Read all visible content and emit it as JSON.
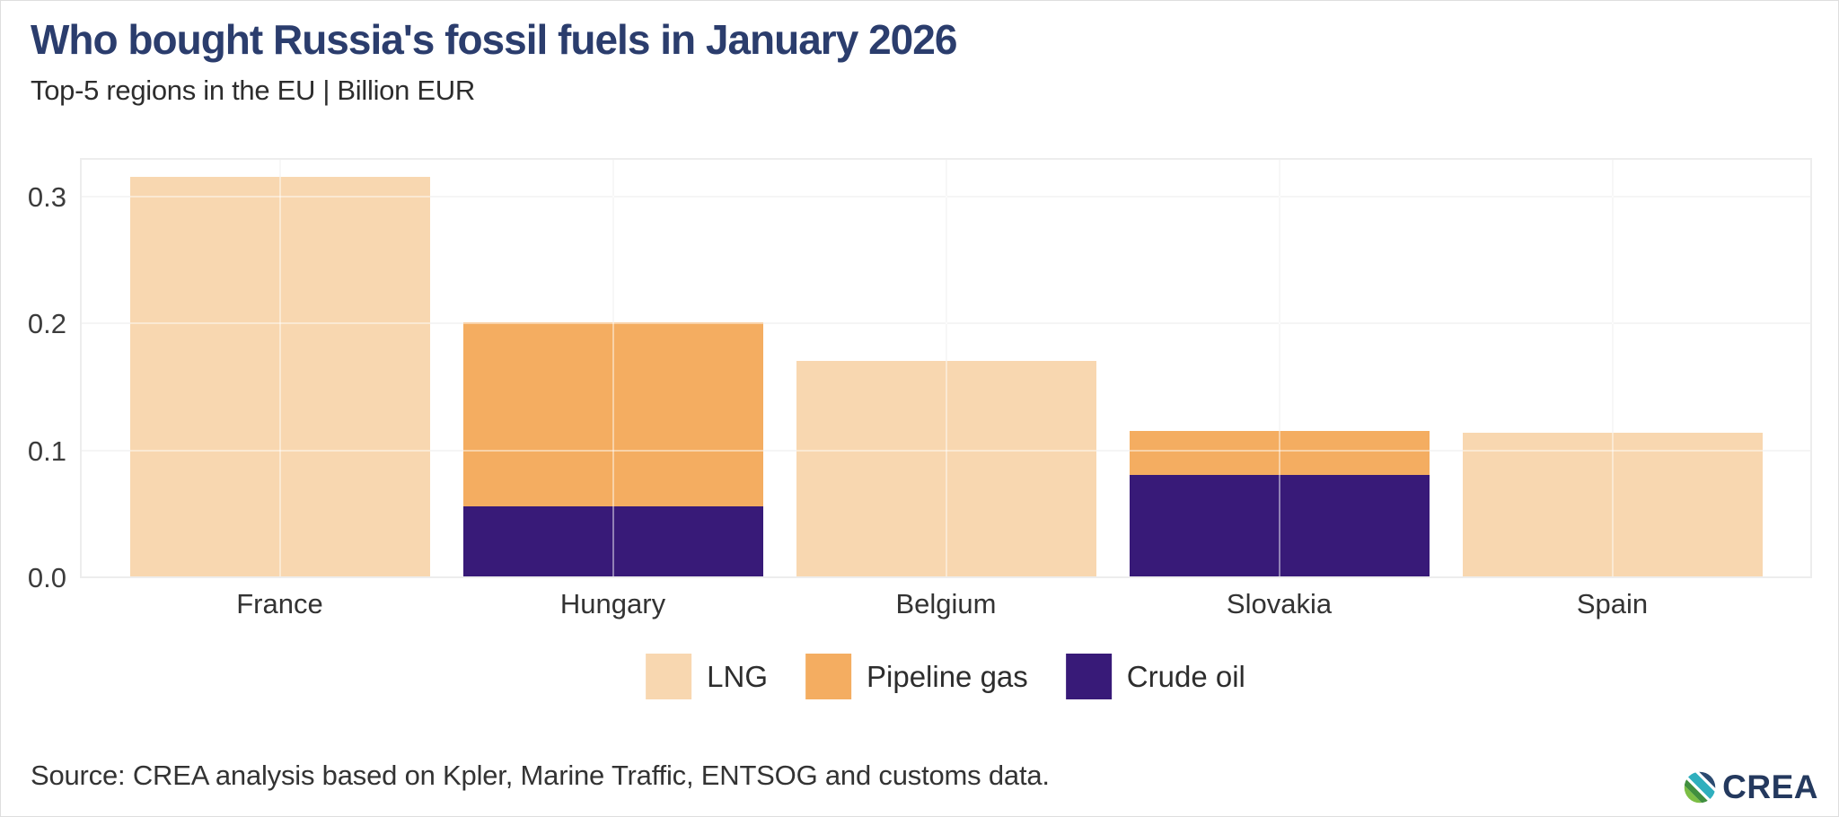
{
  "chart_data": {
    "type": "bar",
    "stacked": true,
    "title": "Who bought Russia's fossil fuels in January 2026",
    "subtitle": "Top-5 regions in the EU | Billion EUR",
    "categories": [
      "France",
      "Hungary",
      "Belgium",
      "Slovakia",
      "Spain"
    ],
    "series": [
      {
        "name": "LNG",
        "color": "#F8D7B0",
        "values": [
          0.315,
          0,
          0.17,
          0,
          0.113
        ]
      },
      {
        "name": "Pipeline gas",
        "color": "#F4AD61",
        "values": [
          0,
          0.145,
          0,
          0.035,
          0
        ]
      },
      {
        "name": "Crude oil",
        "color": "#381A78",
        "values": [
          0,
          0.055,
          0,
          0.08,
          0
        ]
      }
    ],
    "ylabel": "Billion EUR",
    "ylim": [
      0,
      0.33
    ],
    "yticks": [
      0,
      0.1,
      0.2,
      0.3
    ],
    "grid": "horizontal gridlines at yticks plus vertical gridline at each category center",
    "legend_position": "bottom-center"
  },
  "footer": {
    "source": "Source: CREA analysis based on Kpler, Marine Traffic, ENTSOG and customs data.",
    "logo_text": "CREA"
  },
  "colors": {
    "title": "#2B3D6D",
    "lng": "#F8D7B0",
    "pipeline_gas": "#F4AD61",
    "crude_oil": "#381A78",
    "gridline": "#EDEDED",
    "axis_text": "#3C3C3C",
    "logo_navy": "#24395E"
  }
}
